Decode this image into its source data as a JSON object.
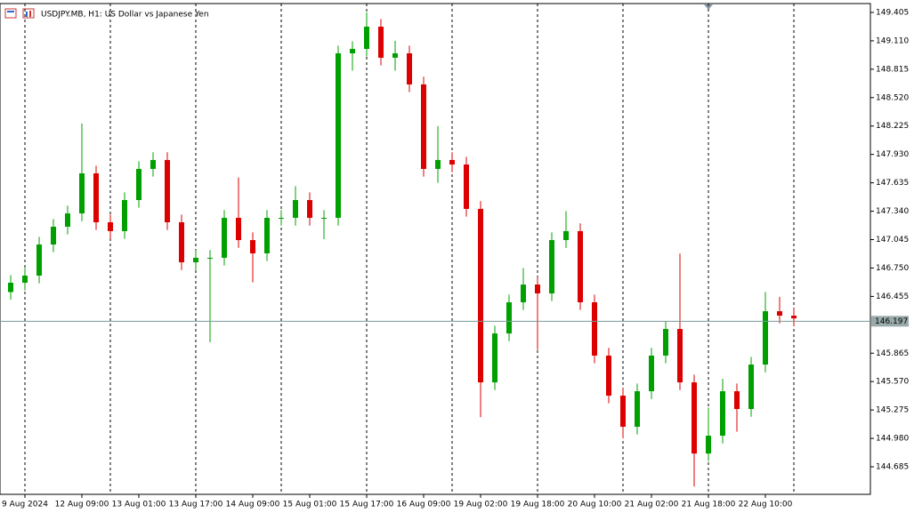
{
  "chart_data": {
    "type": "candlestick",
    "title": "USDJPY.MB, H1: US Dollar vs Japanese Yen",
    "categories": [
      null,
      "9 Aug 2024",
      null,
      null,
      null,
      "12 Aug 09:00",
      null,
      null,
      null,
      "13 Aug 01:00",
      null,
      null,
      null,
      "13 Aug 17:00",
      null,
      null,
      null,
      "14 Aug 09:00",
      null,
      null,
      null,
      "15 Aug 01:00",
      null,
      null,
      null,
      "15 Aug 17:00",
      null,
      null,
      null,
      "16 Aug 09:00",
      null,
      null,
      null,
      "19 Aug 02:00",
      null,
      null,
      null,
      "19 Aug 18:00",
      null,
      null,
      null,
      "20 Aug 10:00",
      null,
      null,
      null,
      "21 Aug 02:00",
      null,
      null,
      null,
      "21 Aug 18:00",
      null,
      null,
      null,
      "22 Aug 10:00",
      null,
      null
    ],
    "open": [
      146.5,
      146.597,
      146.671,
      146.994,
      147.179,
      147.317,
      147.733,
      147.225,
      147.133,
      147.456,
      147.779,
      147.872,
      147.225,
      146.809,
      146.856,
      146.856,
      147.271,
      147.04,
      146.902,
      147.271,
      147.271,
      147.456,
      147.271,
      147.271,
      148.98,
      149.026,
      149.257,
      148.934,
      148.98,
      148.657,
      147.779,
      147.872,
      147.825,
      147.364,
      145.562,
      146.07,
      146.394,
      146.578,
      146.486,
      147.04,
      147.133,
      146.394,
      145.84,
      145.424,
      145.101,
      145.47,
      145.84,
      146.117,
      145.562,
      144.823,
      145.008,
      145.47,
      145.285,
      145.747,
      146.301,
      146.255
    ],
    "high": [
      146.677,
      146.751,
      147.074,
      147.259,
      147.397,
      148.25,
      147.813,
      147.305,
      147.536,
      147.859,
      147.952,
      147.952,
      147.305,
      146.936,
      146.936,
      147.351,
      147.69,
      147.12,
      147.351,
      147.351,
      147.6,
      147.536,
      147.351,
      149.06,
      149.106,
      149.405,
      149.337,
      149.11,
      149.06,
      148.737,
      148.225,
      147.952,
      147.905,
      147.444,
      146.15,
      146.474,
      146.75,
      146.658,
      147.12,
      147.34,
      147.213,
      146.474,
      145.92,
      145.504,
      145.55,
      145.92,
      146.197,
      146.9,
      145.642,
      145.3,
      145.6,
      145.55,
      145.827,
      146.5,
      146.45,
      146.335
    ],
    "low": [
      146.42,
      146.517,
      146.591,
      146.914,
      147.099,
      147.237,
      147.145,
      147.053,
      147.053,
      147.376,
      147.699,
      147.145,
      146.729,
      146.729,
      145.98,
      146.776,
      146.96,
      146.6,
      146.822,
      147.191,
      147.191,
      147.191,
      147.05,
      147.191,
      148.8,
      148.946,
      148.854,
      148.8,
      148.577,
      147.699,
      147.635,
      147.745,
      147.284,
      145.2,
      145.482,
      145.99,
      146.314,
      145.9,
      146.406,
      146.96,
      146.314,
      145.76,
      145.344,
      144.98,
      145.021,
      145.39,
      145.76,
      145.482,
      144.48,
      144.743,
      144.928,
      145.05,
      145.205,
      145.667,
      146.175,
      146.147
    ],
    "close": [
      146.597,
      146.671,
      146.994,
      147.179,
      147.317,
      147.733,
      147.225,
      147.133,
      147.456,
      147.779,
      147.872,
      147.225,
      146.809,
      146.856,
      146.856,
      147.271,
      147.04,
      146.902,
      147.271,
      147.271,
      147.456,
      147.271,
      147.271,
      148.98,
      149.026,
      149.257,
      148.934,
      148.98,
      148.657,
      147.779,
      147.872,
      147.825,
      147.364,
      145.562,
      146.07,
      146.394,
      146.578,
      146.486,
      147.04,
      147.133,
      146.394,
      145.84,
      145.424,
      145.101,
      145.47,
      145.84,
      146.117,
      145.562,
      144.823,
      145.008,
      145.47,
      145.285,
      145.747,
      146.301,
      146.255,
      146.227
    ],
    "up_color": "#00a000",
    "down_color": "#dd0000",
    "last_price": 146.197,
    "ylim": [
      144.399,
      149.497
    ],
    "yticks": [
      149.405,
      {
        "value": 149.11,
        "label": "149.110"
      },
      148.815,
      {
        "value": 148.52,
        "label": "148.520"
      },
      148.225,
      {
        "value": 147.93,
        "label": "147.930"
      },
      147.635,
      {
        "value": 147.34,
        "label": "147.340"
      },
      147.045,
      {
        "value": 146.75,
        "label": "146.750"
      },
      146.455,
      145.865,
      {
        "value": 145.57,
        "label": "145.570"
      },
      145.275,
      {
        "value": 144.98,
        "label": "144.980"
      },
      144.685
    ]
  }
}
